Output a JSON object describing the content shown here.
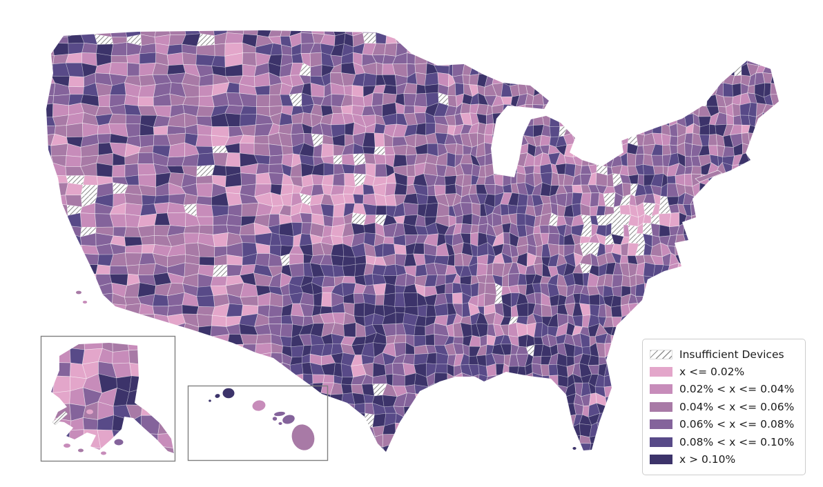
{
  "figure": {
    "background": "#ffffff",
    "description": "United States county-level choropleth map with Alaska and Hawaii insets"
  },
  "legend": {
    "position": "lower-right",
    "items": [
      {
        "label": "Insufficient Devices",
        "type": "hatch"
      },
      {
        "label": "x <= 0.02%",
        "type": "fill",
        "color": "#e3a6ca"
      },
      {
        "label": "0.02% < x <= 0.04%",
        "type": "fill",
        "color": "#c78cba"
      },
      {
        "label": "0.04% < x <= 0.06%",
        "type": "fill",
        "color": "#a87aa6"
      },
      {
        "label": "0.06% < x <= 0.08%",
        "type": "fill",
        "color": "#84639b"
      },
      {
        "label": "0.08% < x <= 0.10%",
        "type": "fill",
        "color": "#584a88"
      },
      {
        "label": "x > 0.10%",
        "type": "fill",
        "color": "#3c336a"
      }
    ]
  },
  "map": {
    "type": "choropleth",
    "region": "United States counties",
    "insets": [
      "Alaska",
      "Hawaii"
    ],
    "county_border_color": "#ffffff",
    "inset_border_color": "#7f7f7f",
    "hatch": {
      "fill": "#ffffff",
      "line_color": "#8f8f8f"
    }
  },
  "chart_data": {
    "type": "heatmap",
    "subtype": "choropleth-map",
    "title": "",
    "bins": [
      "x <= 0.02%",
      "0.02% < x <= 0.04%",
      "0.04% < x <= 0.06%",
      "0.06% < x <= 0.08%",
      "0.08% < x <= 0.10%",
      "x > 0.10%"
    ],
    "bin_colors": [
      "#e3a6ca",
      "#c78cba",
      "#a87aa6",
      "#84639b",
      "#584a88",
      "#3c336a"
    ],
    "missing_data_class": "Insufficient Devices",
    "legend_position": "lower right",
    "notable_patterns": {
      "light_pink_regions": [
        "Nebraska",
        "western Kansas",
        "coastal California"
      ],
      "dark_regions": [
        "Texas",
        "Oklahoma",
        "eastern Colorado",
        "Florida",
        "Gulf coast"
      ],
      "hatched_clusters": [
        "Virginia",
        "South Dakota / Nebraska border",
        "North Dakota"
      ]
    }
  }
}
